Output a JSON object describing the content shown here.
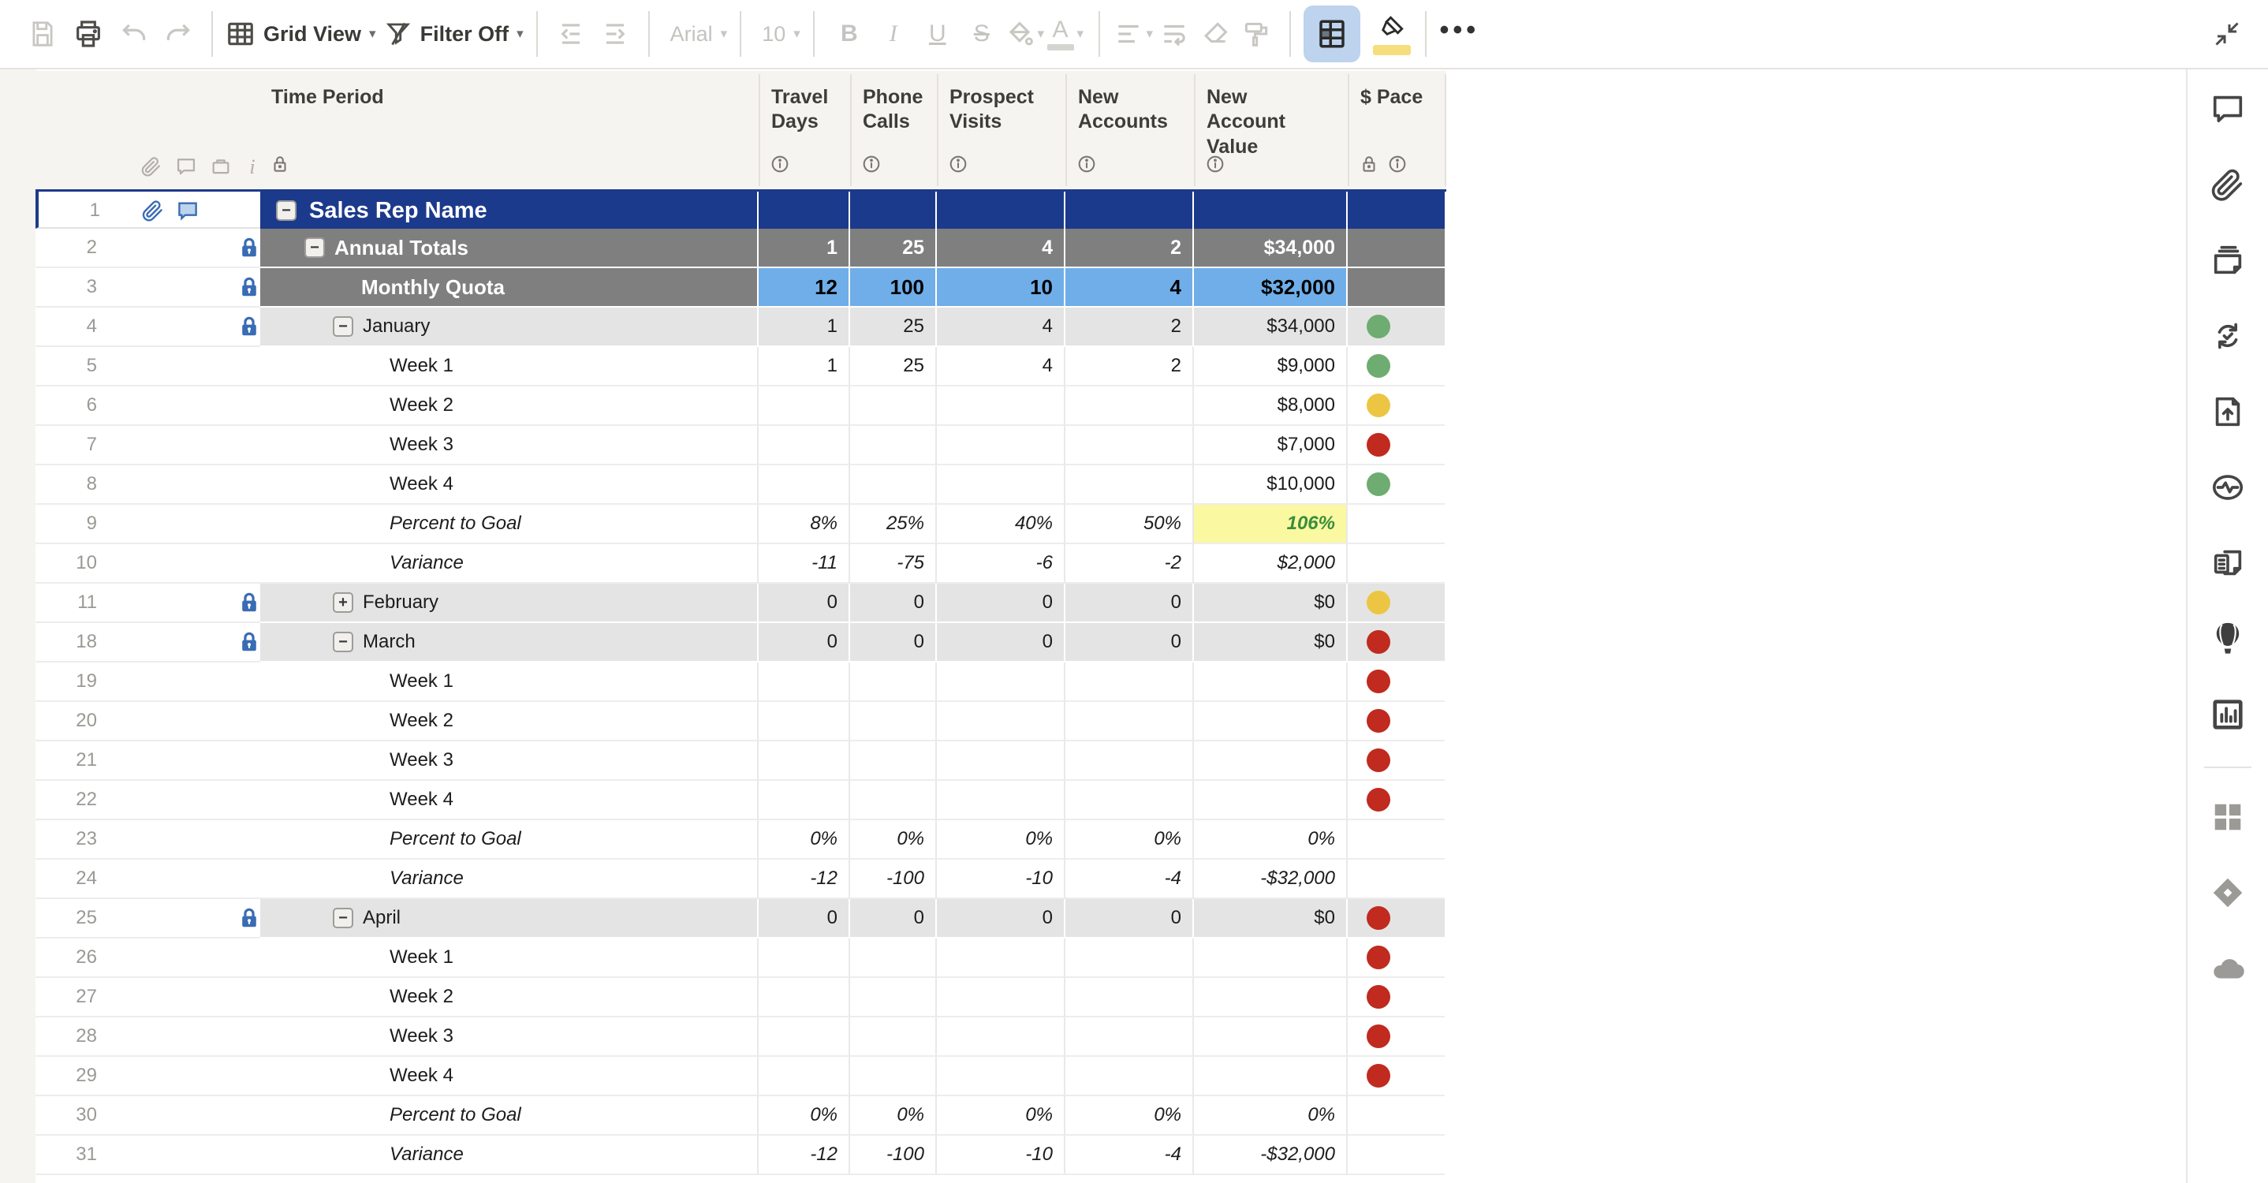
{
  "toolbar": {
    "view_label": "Grid View",
    "filter_label": "Filter Off",
    "font_name": "Arial",
    "font_size": "10",
    "more_label": "•••"
  },
  "colors": {
    "root_row": "#1C3A8C",
    "summary_gray": "#7F7F7F",
    "quota_blue": "#6FAEE8",
    "month_gray": "#E4E4E4",
    "highlight_bg": "#FAF8A0",
    "highlight_text": "#388E3C",
    "pace_green": "#6EAC71",
    "pace_yellow": "#ECC643",
    "pace_red": "#C02A1F",
    "lock_blue": "#3A6CB4"
  },
  "grid": {
    "gutter_header_icons": [
      "attachment",
      "comment",
      "proof",
      "info"
    ],
    "columns": [
      {
        "id": "time",
        "label": "Time Period",
        "icons": [
          "lock"
        ]
      },
      {
        "id": "travel",
        "label": "Travel\nDays",
        "icons": [
          "info"
        ]
      },
      {
        "id": "phone",
        "label": "Phone\nCalls",
        "icons": [
          "info"
        ]
      },
      {
        "id": "prospect",
        "label": "Prospect\nVisits",
        "icons": [
          "info"
        ]
      },
      {
        "id": "accounts",
        "label": "New\nAccounts",
        "icons": [
          "info"
        ]
      },
      {
        "id": "value",
        "label": "New\nAccount\nValue",
        "icons": [
          "info"
        ]
      },
      {
        "id": "pace",
        "label": "$ Pace",
        "icons": [
          "lock",
          "info"
        ]
      }
    ],
    "rows": [
      {
        "n": 1,
        "type": "root",
        "level": 0,
        "toggle": "minus",
        "gutter": [
          "attachment",
          "comment"
        ],
        "label": "Sales Rep Name",
        "values": [
          "",
          "",
          "",
          "",
          ""
        ],
        "pace": null
      },
      {
        "n": 2,
        "type": "totals",
        "level": 1,
        "toggle": "minus",
        "lock": true,
        "label": "Annual Totals",
        "values": [
          "1",
          "25",
          "4",
          "2",
          "$34,000"
        ],
        "pace": null
      },
      {
        "n": 3,
        "type": "quota",
        "level": 2,
        "toggle": null,
        "lock": true,
        "label": "Monthly Quota",
        "values": [
          "12",
          "100",
          "10",
          "4",
          "$32,000"
        ],
        "pace": null
      },
      {
        "n": 4,
        "type": "month",
        "level": 2,
        "toggle": "minus",
        "lock": true,
        "label": "January",
        "values": [
          "1",
          "25",
          "4",
          "2",
          "$34,000"
        ],
        "pace": "green"
      },
      {
        "n": 5,
        "type": "week",
        "level": 3,
        "toggle": null,
        "label": "Week 1",
        "values": [
          "1",
          "25",
          "4",
          "2",
          "$9,000"
        ],
        "pace": "green"
      },
      {
        "n": 6,
        "type": "week",
        "level": 3,
        "toggle": null,
        "label": "Week 2",
        "values": [
          "",
          "",
          "",
          "",
          "$8,000"
        ],
        "pace": "yellow"
      },
      {
        "n": 7,
        "type": "week",
        "level": 3,
        "toggle": null,
        "label": "Week 3",
        "values": [
          "",
          "",
          "",
          "",
          "$7,000"
        ],
        "pace": "red"
      },
      {
        "n": 8,
        "type": "week",
        "level": 3,
        "toggle": null,
        "label": "Week 4",
        "values": [
          "",
          "",
          "",
          "",
          "$10,000"
        ],
        "pace": "green"
      },
      {
        "n": 9,
        "type": "calc",
        "level": 3,
        "toggle": null,
        "label": "Percent to Goal",
        "values": [
          "8%",
          "25%",
          "40%",
          "50%",
          "106%"
        ],
        "pace": null,
        "highlight": true
      },
      {
        "n": 10,
        "type": "calc",
        "level": 3,
        "toggle": null,
        "label": "Variance",
        "values": [
          "-11",
          "-75",
          "-6",
          "-2",
          "$2,000"
        ],
        "pace": null
      },
      {
        "n": 11,
        "type": "month",
        "level": 2,
        "toggle": "plus",
        "lock": true,
        "label": "February",
        "values": [
          "0",
          "0",
          "0",
          "0",
          "$0"
        ],
        "pace": "yellow"
      },
      {
        "n": 18,
        "type": "month",
        "level": 2,
        "toggle": "minus",
        "lock": true,
        "label": "March",
        "values": [
          "0",
          "0",
          "0",
          "0",
          "$0"
        ],
        "pace": "red"
      },
      {
        "n": 19,
        "type": "week",
        "level": 3,
        "toggle": null,
        "label": "Week 1",
        "values": [
          "",
          "",
          "",
          "",
          ""
        ],
        "pace": "red"
      },
      {
        "n": 20,
        "type": "week",
        "level": 3,
        "toggle": null,
        "label": "Week 2",
        "values": [
          "",
          "",
          "",
          "",
          ""
        ],
        "pace": "red"
      },
      {
        "n": 21,
        "type": "week",
        "level": 3,
        "toggle": null,
        "label": "Week 3",
        "values": [
          "",
          "",
          "",
          "",
          ""
        ],
        "pace": "red"
      },
      {
        "n": 22,
        "type": "week",
        "level": 3,
        "toggle": null,
        "label": "Week 4",
        "values": [
          "",
          "",
          "",
          "",
          ""
        ],
        "pace": "red"
      },
      {
        "n": 23,
        "type": "calc",
        "level": 3,
        "toggle": null,
        "label": "Percent to Goal",
        "values": [
          "0%",
          "0%",
          "0%",
          "0%",
          "0%"
        ],
        "pace": null
      },
      {
        "n": 24,
        "type": "calc",
        "level": 3,
        "toggle": null,
        "label": "Variance",
        "values": [
          "-12",
          "-100",
          "-10",
          "-4",
          "-$32,000"
        ],
        "pace": null
      },
      {
        "n": 25,
        "type": "month",
        "level": 2,
        "toggle": "minus",
        "lock": true,
        "label": "April",
        "values": [
          "0",
          "0",
          "0",
          "0",
          "$0"
        ],
        "pace": "red"
      },
      {
        "n": 26,
        "type": "week",
        "level": 3,
        "toggle": null,
        "label": "Week 1",
        "values": [
          "",
          "",
          "",
          "",
          ""
        ],
        "pace": "red"
      },
      {
        "n": 27,
        "type": "week",
        "level": 3,
        "toggle": null,
        "label": "Week 2",
        "values": [
          "",
          "",
          "",
          "",
          ""
        ],
        "pace": "red"
      },
      {
        "n": 28,
        "type": "week",
        "level": 3,
        "toggle": null,
        "label": "Week 3",
        "values": [
          "",
          "",
          "",
          "",
          ""
        ],
        "pace": "red"
      },
      {
        "n": 29,
        "type": "week",
        "level": 3,
        "toggle": null,
        "label": "Week 4",
        "values": [
          "",
          "",
          "",
          "",
          ""
        ],
        "pace": "red"
      },
      {
        "n": 30,
        "type": "calc",
        "level": 3,
        "toggle": null,
        "label": "Percent to Goal",
        "values": [
          "0%",
          "0%",
          "0%",
          "0%",
          "0%"
        ],
        "pace": null
      },
      {
        "n": 31,
        "type": "calc",
        "level": 3,
        "toggle": null,
        "label": "Variance",
        "values": [
          "-12",
          "-100",
          "-10",
          "-4",
          "-$32,000"
        ],
        "pace": null
      }
    ]
  },
  "sidebar": {
    "icons": [
      {
        "name": "comments"
      },
      {
        "name": "attachments"
      },
      {
        "name": "proofs"
      },
      {
        "name": "update-requests"
      },
      {
        "name": "publish"
      },
      {
        "name": "activity-log"
      },
      {
        "name": "summary"
      },
      {
        "name": "launcher-balloon"
      },
      {
        "name": "charts"
      },
      {
        "name": "divider"
      },
      {
        "name": "apps-grid",
        "gray": true
      },
      {
        "name": "connector-diamond",
        "gray": true
      },
      {
        "name": "connector-cloud",
        "gray": true
      }
    ]
  }
}
